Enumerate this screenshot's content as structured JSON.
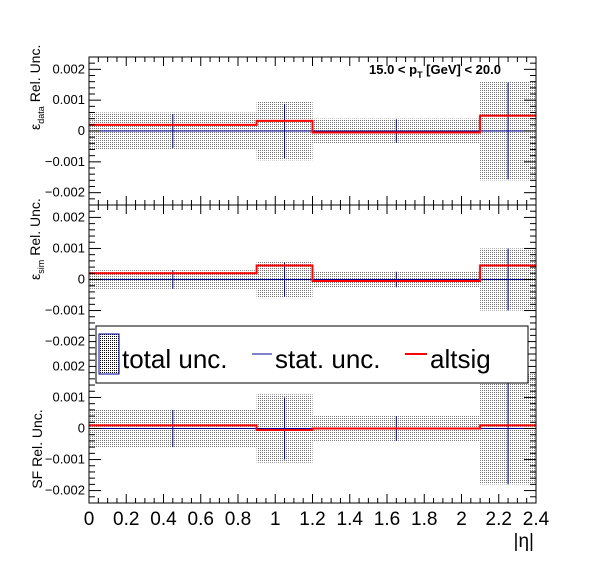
{
  "chart_data": [
    {
      "type": "step",
      "panel": "data",
      "ylabel": "ε_data Rel. Unc.",
      "ylabel_main": "Rel. Unc.",
      "ylabel_symbol": "ε",
      "ylabel_sub": "data",
      "annotation": "15.0 < p_T [GeV] < 20.0",
      "ann_prefix": "15.0 < p",
      "ann_sub": "T",
      "ann_suffix": " [GeV] < 20.0",
      "ylim": [
        -0.0024,
        0.0024
      ],
      "yticks": [
        -0.002,
        -0.001,
        0,
        0.001,
        0.002
      ],
      "ytick_labels": [
        "−0.002",
        "−0.001",
        "0",
        "0.001",
        "0.002"
      ],
      "bin_edges": [
        0,
        0.9,
        1.2,
        2.1,
        2.4
      ],
      "series": [
        {
          "name": "total unc.",
          "values": [
            0.0006,
            0.00095,
            0.0004,
            0.0016
          ]
        },
        {
          "name": "stat. unc.",
          "values": [
            0.00055,
            0.00088,
            0.00038,
            0.00157
          ]
        },
        {
          "name": "altsig",
          "values": [
            0.0002,
            0.00033,
            -5e-05,
            0.0005
          ]
        }
      ]
    },
    {
      "type": "step",
      "panel": "sim",
      "ylabel": "ε_sim Rel. Unc.",
      "ylabel_main": "Rel. Unc.",
      "ylabel_symbol": "ε",
      "ylabel_sub": "sim",
      "ylim": [
        -0.0024,
        0.0024
      ],
      "yticks": [
        -0.002,
        -0.001,
        0,
        0.001,
        0.002
      ],
      "ytick_labels": [
        "−0.002",
        "−0.001",
        "0",
        "0.001",
        "0.002"
      ],
      "bin_edges": [
        0,
        0.9,
        1.2,
        2.1,
        2.4
      ],
      "series": [
        {
          "name": "total unc.",
          "values": [
            0.0003,
            0.0006,
            0.00025,
            0.001
          ]
        },
        {
          "name": "stat. unc.",
          "values": [
            0.0003,
            0.00055,
            0.00025,
            0.001
          ]
        },
        {
          "name": "altsig",
          "values": [
            0.0002,
            0.00045,
            -5e-05,
            0.00045
          ]
        }
      ]
    },
    {
      "type": "step",
      "panel": "sf",
      "ylabel": "SF Rel. Unc.",
      "ylim": [
        -0.0024,
        0.0024
      ],
      "yticks": [
        -0.002,
        -0.001,
        0,
        0.001,
        0.002
      ],
      "ytick_labels": [
        "−0.002",
        "−0.001",
        "0",
        "0.001",
        "0.002"
      ],
      "bin_edges": [
        0,
        0.9,
        1.2,
        2.1,
        2.4
      ],
      "xlabel": "|η|",
      "xlim": [
        0,
        2.4
      ],
      "xticks": [
        0,
        0.2,
        0.4,
        0.6,
        0.8,
        1,
        1.2,
        1.4,
        1.6,
        1.8,
        2,
        2.2,
        2.4
      ],
      "xtick_labels": [
        "0",
        "0.2",
        "0.4",
        "0.6",
        "0.8",
        "1",
        "1.2",
        "1.4",
        "1.6",
        "1.8",
        "2",
        "2.2",
        "2.4"
      ],
      "series": [
        {
          "name": "total unc.",
          "values": [
            0.0006,
            0.0011,
            0.0004,
            0.0018
          ]
        },
        {
          "name": "stat. unc.",
          "values": [
            0.0006,
            0.001,
            0.0004,
            0.0018
          ]
        },
        {
          "name": "altsig",
          "values": [
            0.0001,
            -5e-05,
            0.0,
            0.0001
          ]
        }
      ]
    }
  ],
  "legend": {
    "entries": [
      "total unc.",
      "stat. unc.",
      "altsig"
    ]
  },
  "colors": {
    "altsig": "#ff0000",
    "stat": "#000099",
    "hatch": "#000000",
    "frame": "#000000"
  }
}
